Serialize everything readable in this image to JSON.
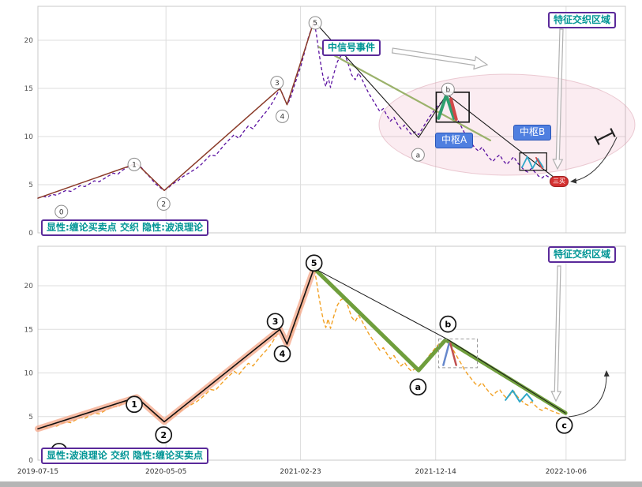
{
  "colors": {
    "teal_label": "#009595",
    "purple_border": "#5a2a9a",
    "hub_label_bg": "#4f7fe0",
    "buy_marker_red": "#d43030",
    "price_top": "#5a10a0",
    "price_bottom": "#f2a124",
    "impulse_glow": "#f5ab8e",
    "decline_green": "#6f9e3c",
    "highlight_ellipse": "#e07090"
  },
  "price_points": [
    [
      0.0,
      3.6
    ],
    [
      0.008,
      3.8
    ],
    [
      0.016,
      3.7
    ],
    [
      0.024,
      4.0
    ],
    [
      0.032,
      3.9
    ],
    [
      0.04,
      4.2
    ],
    [
      0.048,
      4.4
    ],
    [
      0.056,
      4.3
    ],
    [
      0.064,
      4.6
    ],
    [
      0.072,
      4.9
    ],
    [
      0.08,
      4.8
    ],
    [
      0.088,
      5.1
    ],
    [
      0.096,
      5.4
    ],
    [
      0.104,
      5.3
    ],
    [
      0.112,
      5.6
    ],
    [
      0.12,
      5.9
    ],
    [
      0.128,
      6.2
    ],
    [
      0.136,
      6.1
    ],
    [
      0.144,
      6.5
    ],
    [
      0.152,
      6.8
    ],
    [
      0.16,
      7.1
    ],
    [
      0.168,
      7.2
    ],
    [
      0.176,
      6.8
    ],
    [
      0.184,
      6.2
    ],
    [
      0.192,
      5.7
    ],
    [
      0.2,
      5.1
    ],
    [
      0.208,
      4.7
    ],
    [
      0.215,
      4.4
    ],
    [
      0.222,
      4.7
    ],
    [
      0.23,
      5.1
    ],
    [
      0.238,
      5.4
    ],
    [
      0.246,
      5.8
    ],
    [
      0.254,
      6.1
    ],
    [
      0.262,
      6.4
    ],
    [
      0.27,
      6.7
    ],
    [
      0.278,
      7.1
    ],
    [
      0.286,
      7.6
    ],
    [
      0.294,
      8.1
    ],
    [
      0.302,
      8.0
    ],
    [
      0.31,
      8.6
    ],
    [
      0.318,
      9.2
    ],
    [
      0.326,
      9.7
    ],
    [
      0.334,
      10.2
    ],
    [
      0.342,
      9.8
    ],
    [
      0.35,
      10.5
    ],
    [
      0.358,
      11.1
    ],
    [
      0.366,
      10.8
    ],
    [
      0.374,
      11.5
    ],
    [
      0.382,
      12.1
    ],
    [
      0.39,
      12.7
    ],
    [
      0.398,
      13.4
    ],
    [
      0.406,
      14.3
    ],
    [
      0.412,
      15.0
    ],
    [
      0.418,
      14.2
    ],
    [
      0.424,
      13.3
    ],
    [
      0.43,
      14.0
    ],
    [
      0.436,
      15.2
    ],
    [
      0.442,
      16.3
    ],
    [
      0.448,
      17.4
    ],
    [
      0.454,
      18.8
    ],
    [
      0.46,
      20.2
    ],
    [
      0.466,
      21.3
    ],
    [
      0.47,
      22.0
    ],
    [
      0.474,
      20.6
    ],
    [
      0.478,
      18.9
    ],
    [
      0.482,
      17.3
    ],
    [
      0.486,
      16.0
    ],
    [
      0.49,
      15.2
    ],
    [
      0.494,
      16.2
    ],
    [
      0.498,
      15.1
    ],
    [
      0.504,
      16.6
    ],
    [
      0.51,
      17.8
    ],
    [
      0.516,
      18.4
    ],
    [
      0.522,
      18.6
    ],
    [
      0.528,
      17.6
    ],
    [
      0.534,
      16.4
    ],
    [
      0.54,
      15.9
    ],
    [
      0.546,
      16.6
    ],
    [
      0.552,
      15.9
    ],
    [
      0.558,
      15.1
    ],
    [
      0.564,
      14.4
    ],
    [
      0.57,
      13.8
    ],
    [
      0.576,
      13.2
    ],
    [
      0.582,
      12.6
    ],
    [
      0.588,
      12.9
    ],
    [
      0.594,
      12.2
    ],
    [
      0.6,
      11.6
    ],
    [
      0.606,
      12.0
    ],
    [
      0.612,
      11.3
    ],
    [
      0.618,
      10.8
    ],
    [
      0.624,
      11.2
    ],
    [
      0.63,
      10.6
    ],
    [
      0.636,
      10.2
    ],
    [
      0.642,
      10.5
    ],
    [
      0.648,
      10.2
    ],
    [
      0.654,
      10.8
    ],
    [
      0.66,
      11.4
    ],
    [
      0.666,
      12.0
    ],
    [
      0.672,
      12.5
    ],
    [
      0.678,
      13.0
    ],
    [
      0.684,
      13.4
    ],
    [
      0.69,
      13.7
    ],
    [
      0.696,
      13.9
    ],
    [
      0.702,
      13.2
    ],
    [
      0.708,
      12.5
    ],
    [
      0.714,
      11.8
    ],
    [
      0.72,
      11.1
    ],
    [
      0.726,
      10.4
    ],
    [
      0.732,
      9.8
    ],
    [
      0.738,
      9.3
    ],
    [
      0.744,
      8.8
    ],
    [
      0.75,
      8.5
    ],
    [
      0.756,
      8.9
    ],
    [
      0.762,
      8.3
    ],
    [
      0.768,
      7.8
    ],
    [
      0.774,
      7.4
    ],
    [
      0.78,
      7.8
    ],
    [
      0.786,
      8.1
    ],
    [
      0.792,
      7.5
    ],
    [
      0.798,
      7.1
    ],
    [
      0.804,
      7.5
    ],
    [
      0.81,
      7.9
    ],
    [
      0.816,
      7.3
    ],
    [
      0.822,
      6.9
    ],
    [
      0.828,
      6.5
    ],
    [
      0.834,
      6.3
    ],
    [
      0.84,
      6.7
    ],
    [
      0.846,
      6.3
    ],
    [
      0.852,
      5.9
    ],
    [
      0.858,
      5.7
    ],
    [
      0.864,
      6.0
    ],
    [
      0.872,
      5.7
    ],
    [
      0.88,
      5.5
    ],
    [
      0.888,
      5.3
    ],
    [
      0.896,
      5.5
    ]
  ],
  "chart_data": [
    {
      "type": "line",
      "name": "chan-explicit-panel",
      "region_label": "特征交织区域",
      "signal_label": "中信号事件",
      "hub_a_label": "中枢A",
      "hub_b_label": "中枢B",
      "buy_marker_label": "三买",
      "mode_label": "显性:缠论买卖点 交织 隐性:波浪理论",
      "x_tick_labels": [
        "2019-07-15",
        "2020-05-05",
        "2021-02-23",
        "2021-12-14",
        "2022-10-06"
      ],
      "x_tick_pos": [
        0.0,
        0.218,
        0.447,
        0.677,
        0.899
      ],
      "y_ticks": [
        0,
        5,
        10,
        15,
        20
      ],
      "ylim": [
        0,
        23.5
      ],
      "price_style": {
        "color": "#5a10a0",
        "dash": "4 3",
        "width": 1.3
      },
      "overlays": [
        {
          "name": "impulse-zigzag",
          "points": [
            [
              0.0,
              3.6
            ],
            [
              0.168,
              7.2
            ],
            [
              0.215,
              4.4
            ],
            [
              0.412,
              15.0
            ],
            [
              0.424,
              13.3
            ],
            [
              0.47,
              22.0
            ]
          ],
          "color": "#8a3a28",
          "width": 1.5
        },
        {
          "name": "green-trendline",
          "points": [
            [
              0.478,
              19.3
            ],
            [
              0.77,
              9.6
            ]
          ],
          "color": "#9bb26b",
          "width": 2.2
        },
        {
          "name": "decline-zigzag",
          "points": [
            [
              0.47,
              22.0
            ],
            [
              0.648,
              9.9
            ],
            [
              0.696,
              14.4
            ],
            [
              0.884,
              5.5
            ]
          ],
          "color": "#1a1a1a",
          "width": 1.1
        },
        {
          "name": "hub-a-blue-leg",
          "points": [
            [
              0.682,
              12.0
            ],
            [
              0.693,
              14.0
            ]
          ],
          "color": "#4a7fd4",
          "width": 3
        },
        {
          "name": "hub-a-green-leg",
          "points": [
            [
              0.682,
              11.9
            ],
            [
              0.695,
              14.3
            ],
            [
              0.708,
              11.9
            ]
          ],
          "color": "#2f9e6e",
          "width": 4
        },
        {
          "name": "hub-a-red-leg",
          "points": [
            [
              0.703,
              13.9
            ],
            [
              0.712,
              11.8
            ]
          ],
          "color": "#d04848",
          "width": 4
        },
        {
          "name": "hub-b-cyan-zigzag",
          "points": [
            [
              0.824,
              6.8
            ],
            [
              0.833,
              7.9
            ],
            [
              0.842,
              6.7
            ],
            [
              0.851,
              7.7
            ],
            [
              0.86,
              6.8
            ]
          ],
          "color": "#2fa8c8",
          "width": 1.8
        },
        {
          "name": "hub-b-red-leg",
          "points": [
            [
              0.848,
              7.8
            ],
            [
              0.858,
              6.7
            ]
          ],
          "color": "#d04848",
          "width": 1.8
        }
      ],
      "boxes": [
        {
          "name": "hub-a-box",
          "x0": 0.678,
          "x1": 0.734,
          "y0": 11.5,
          "y1": 14.6,
          "color": "#111111",
          "width": 1.6
        },
        {
          "name": "hub-b-box",
          "x0": 0.82,
          "x1": 0.866,
          "y0": 6.5,
          "y1": 8.3,
          "color": "#111111",
          "width": 1.2
        }
      ],
      "wave_points": [
        {
          "label": "0",
          "x": 0.04,
          "y": 2.2
        },
        {
          "label": "1",
          "x": 0.164,
          "y": 7.1
        },
        {
          "label": "2",
          "x": 0.214,
          "y": 3.0
        },
        {
          "label": "3",
          "x": 0.407,
          "y": 15.6
        },
        {
          "label": "4",
          "x": 0.416,
          "y": 12.1
        },
        {
          "label": "5",
          "x": 0.472,
          "y": 21.8
        },
        {
          "label": "a",
          "x": 0.647,
          "y": 8.1
        },
        {
          "label": "b",
          "x": 0.698,
          "y": 14.9
        }
      ],
      "wave_style": {
        "r": 8,
        "stroke": "#8a8a8a",
        "swidth": 1,
        "font": 9,
        "weight": "normal",
        "fill": "#ffffff",
        "text": "#333333"
      }
    },
    {
      "type": "line",
      "name": "wave-explicit-panel",
      "region_label": "特征交织区域",
      "mode_label": "显性:波浪理论 交织 隐性:缠论买卖点",
      "x_tick_labels": [
        "2019-07-15",
        "2020-05-05",
        "2021-02-23",
        "2021-12-14",
        "2022-10-06"
      ],
      "x_tick_pos": [
        0.0,
        0.218,
        0.447,
        0.677,
        0.899
      ],
      "y_ticks": [
        0,
        5,
        10,
        15,
        20
      ],
      "ylim": [
        0,
        24.5
      ],
      "price_style": {
        "color": "#f2a124",
        "dash": "5 3",
        "width": 1.4
      },
      "overlays": [
        {
          "name": "impulse-glow",
          "points": [
            [
              0.0,
              3.6
            ],
            [
              0.168,
              7.2
            ],
            [
              0.215,
              4.4
            ],
            [
              0.412,
              15.0
            ],
            [
              0.424,
              13.3
            ],
            [
              0.47,
              22.0
            ]
          ],
          "color": "#f5ab8e",
          "width": 8,
          "opacity": 0.8
        },
        {
          "name": "impulse-zigzag",
          "points": [
            [
              0.0,
              3.6
            ],
            [
              0.168,
              7.2
            ],
            [
              0.215,
              4.4
            ],
            [
              0.412,
              15.0
            ],
            [
              0.424,
              13.3
            ],
            [
              0.47,
              22.0
            ]
          ],
          "color": "#111111",
          "width": 1.6
        },
        {
          "name": "decline-green-thick",
          "points": [
            [
              0.47,
              22.0
            ],
            [
              0.648,
              10.3
            ],
            [
              0.694,
              13.8
            ],
            [
              0.898,
              5.4
            ]
          ],
          "color": "#6f9e3c",
          "width": 5
        },
        {
          "name": "decline-trendline",
          "points": [
            [
              0.47,
              22.0
            ],
            [
              0.696,
              13.9
            ],
            [
              0.898,
              5.4
            ]
          ],
          "color": "#1a1a1a",
          "width": 1
        },
        {
          "name": "mini-hub-blue-leg",
          "points": [
            [
              0.69,
              10.9
            ],
            [
              0.7,
              13.4
            ]
          ],
          "color": "#6688cc",
          "width": 2.5
        },
        {
          "name": "mini-hub-red-leg",
          "points": [
            [
              0.702,
              13.4
            ],
            [
              0.712,
              10.9
            ]
          ],
          "color": "#c05050",
          "width": 2.5
        },
        {
          "name": "cyan-zigzag",
          "points": [
            [
              0.796,
              6.9
            ],
            [
              0.808,
              8.0
            ],
            [
              0.82,
              6.7
            ],
            [
              0.832,
              7.6
            ],
            [
              0.842,
              6.8
            ]
          ],
          "color": "#2fa8c8",
          "width": 2
        }
      ],
      "boxes": [
        {
          "name": "mini-hub-box",
          "x0": 0.682,
          "x1": 0.748,
          "y0": 10.6,
          "y1": 13.9,
          "color": "#999999",
          "width": 1,
          "dash": "4 3"
        }
      ],
      "wave_points": [
        {
          "label": "0",
          "x": 0.036,
          "y": 1.0
        },
        {
          "label": "1",
          "x": 0.164,
          "y": 6.4
        },
        {
          "label": "2",
          "x": 0.214,
          "y": 2.9
        },
        {
          "label": "3",
          "x": 0.404,
          "y": 15.9
        },
        {
          "label": "4",
          "x": 0.416,
          "y": 12.2
        },
        {
          "label": "5",
          "x": 0.47,
          "y": 22.6
        },
        {
          "label": "a",
          "x": 0.647,
          "y": 8.4
        },
        {
          "label": "b",
          "x": 0.698,
          "y": 15.6
        },
        {
          "label": "c",
          "x": 0.896,
          "y": 4.0
        }
      ],
      "wave_style": {
        "r": 10,
        "stroke": "#151515",
        "swidth": 1.7,
        "font": 11,
        "weight": "bold",
        "fill": "#ffffff",
        "text": "#000000"
      }
    }
  ]
}
